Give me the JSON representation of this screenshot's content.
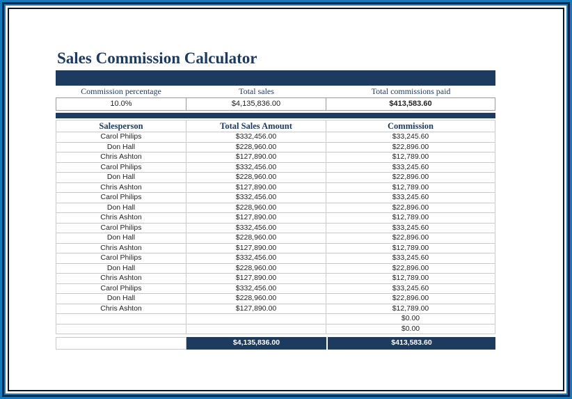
{
  "page": {
    "title": "Sales Commission Calculator"
  },
  "summary": {
    "columns": [
      {
        "label": "Commission percentage",
        "value": "10.0%"
      },
      {
        "label": "Total sales",
        "value": "$4,135,836.00"
      },
      {
        "label": "Total commissions paid",
        "value": "$413,583.60"
      }
    ]
  },
  "table": {
    "headers": [
      "Salesperson",
      "Total Sales Amount",
      "Commission"
    ],
    "rows": [
      {
        "name": "Carol Philips",
        "sales": "$332,456.00",
        "commission": "$33,245.60"
      },
      {
        "name": "Don Hall",
        "sales": "$228,960.00",
        "commission": "$22,896.00"
      },
      {
        "name": "Chris Ashton",
        "sales": "$127,890.00",
        "commission": "$12,789.00"
      },
      {
        "name": "Carol Philips",
        "sales": "$332,456.00",
        "commission": "$33,245.60"
      },
      {
        "name": "Don Hall",
        "sales": "$228,960.00",
        "commission": "$22,896.00"
      },
      {
        "name": "Chris Ashton",
        "sales": "$127,890.00",
        "commission": "$12,789.00"
      },
      {
        "name": "Carol Philips",
        "sales": "$332,456.00",
        "commission": "$33,245.60"
      },
      {
        "name": "Don Hall",
        "sales": "$228,960.00",
        "commission": "$22,896.00"
      },
      {
        "name": "Chris Ashton",
        "sales": "$127,890.00",
        "commission": "$12,789.00"
      },
      {
        "name": "Carol Philips",
        "sales": "$332,456.00",
        "commission": "$33,245.60"
      },
      {
        "name": "Don Hall",
        "sales": "$228,960.00",
        "commission": "$22,896.00"
      },
      {
        "name": "Chris Ashton",
        "sales": "$127,890.00",
        "commission": "$12,789.00"
      },
      {
        "name": "Carol Philips",
        "sales": "$332,456.00",
        "commission": "$33,245.60"
      },
      {
        "name": "Don Hall",
        "sales": "$228,960.00",
        "commission": "$22,896.00"
      },
      {
        "name": "Chris Ashton",
        "sales": "$127,890.00",
        "commission": "$12,789.00"
      },
      {
        "name": "Carol Philips",
        "sales": "$332,456.00",
        "commission": "$33,245.60"
      },
      {
        "name": "Don Hall",
        "sales": "$228,960.00",
        "commission": "$22,896.00"
      },
      {
        "name": "Chris Ashton",
        "sales": "$127,890.00",
        "commission": "$12,789.00"
      },
      {
        "name": "",
        "sales": "",
        "commission": "$0.00"
      },
      {
        "name": "",
        "sales": "",
        "commission": "$0.00"
      }
    ],
    "total": {
      "sales": "$4,135,836.00",
      "commission": "$413,583.60"
    }
  },
  "colors": {
    "navy": "#1d3a5f",
    "frame_blue": "#1778bc",
    "frame_dark_navy": "#0c2645",
    "frame_black": "#0b1626",
    "grid_line": "#c9c9c9",
    "summary_border": "#999999"
  }
}
